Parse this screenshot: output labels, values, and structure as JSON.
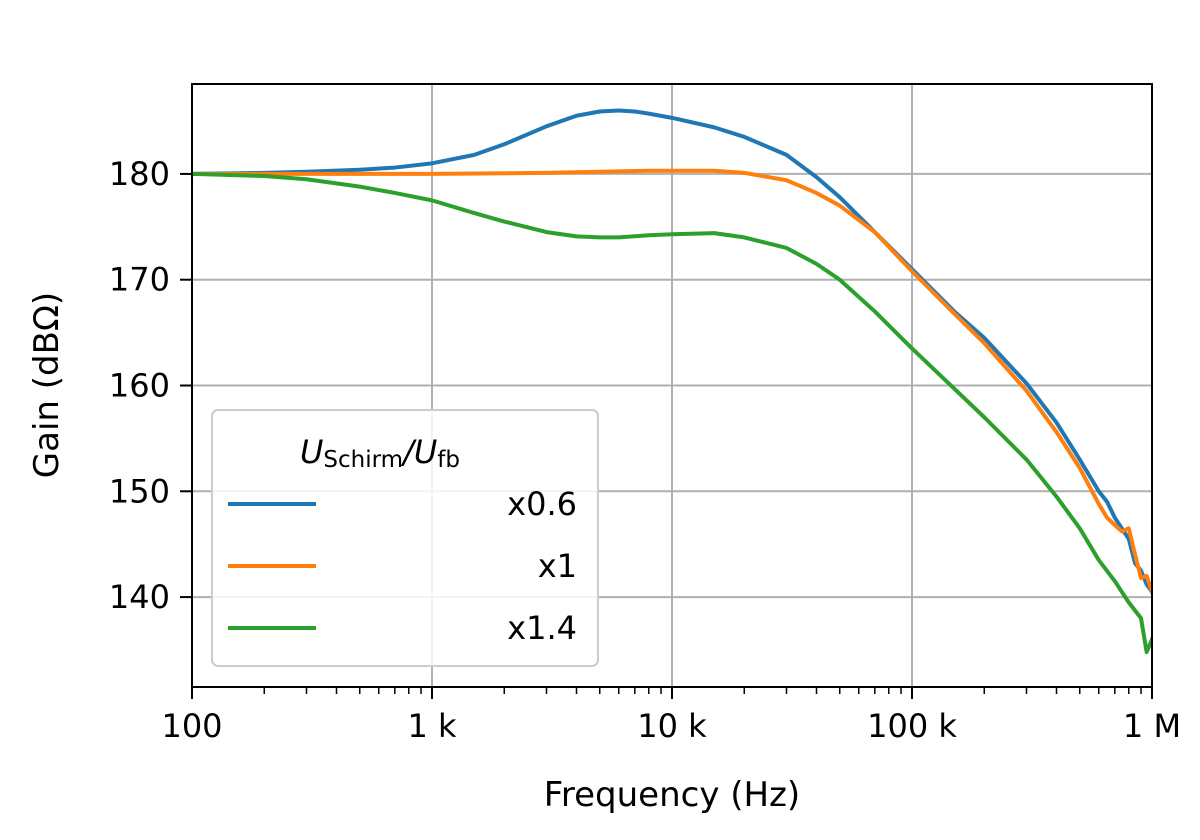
{
  "chart_data": {
    "type": "line",
    "xlabel": "Frequency (Hz)",
    "ylabel": "Gain (dBΩ)",
    "x_scale": "log",
    "xlim": [
      100,
      1000000
    ],
    "ylim": [
      131.5,
      188.5
    ],
    "grid": true,
    "x_ticks": [
      {
        "value": 100,
        "label": "100"
      },
      {
        "value": 1000,
        "label": "1 k"
      },
      {
        "value": 10000,
        "label": "10 k"
      },
      {
        "value": 100000,
        "label": "100 k"
      },
      {
        "value": 1000000,
        "label": "1 M"
      }
    ],
    "y_ticks": [
      140,
      150,
      160,
      170,
      180
    ],
    "legend": {
      "title_main": "U",
      "title_sub1": "Schirm",
      "title_sep": "/U",
      "title_sub2": "fb",
      "placement": "lower-left"
    },
    "series": [
      {
        "name": "x0.6",
        "color": "#1f77b4",
        "points": [
          [
            100,
            180
          ],
          [
            200,
            180.1
          ],
          [
            300,
            180.2
          ],
          [
            500,
            180.4
          ],
          [
            700,
            180.6
          ],
          [
            1000,
            181
          ],
          [
            1500,
            181.8
          ],
          [
            2000,
            182.8
          ],
          [
            3000,
            184.5
          ],
          [
            4000,
            185.5
          ],
          [
            5000,
            185.9
          ],
          [
            6000,
            186
          ],
          [
            7000,
            185.9
          ],
          [
            8000,
            185.7
          ],
          [
            10000,
            185.3
          ],
          [
            15000,
            184.4
          ],
          [
            20000,
            183.5
          ],
          [
            30000,
            181.8
          ],
          [
            40000,
            179.7
          ],
          [
            50000,
            177.8
          ],
          [
            70000,
            174.5
          ],
          [
            100000,
            171
          ],
          [
            150000,
            167
          ],
          [
            200000,
            164.5
          ],
          [
            300000,
            160.2
          ],
          [
            400000,
            156.5
          ],
          [
            500000,
            153
          ],
          [
            600000,
            150
          ],
          [
            650000,
            149
          ],
          [
            700000,
            147.5
          ],
          [
            800000,
            145.5
          ],
          [
            850000,
            143.2
          ],
          [
            900000,
            142.5
          ],
          [
            950000,
            141.2
          ],
          [
            1000000,
            140.5
          ]
        ]
      },
      {
        "name": "x1",
        "color": "#ff7f0e",
        "points": [
          [
            100,
            180
          ],
          [
            300,
            180
          ],
          [
            1000,
            180
          ],
          [
            3000,
            180.1
          ],
          [
            5000,
            180.2
          ],
          [
            8000,
            180.3
          ],
          [
            10000,
            180.3
          ],
          [
            15000,
            180.3
          ],
          [
            20000,
            180.1
          ],
          [
            30000,
            179.4
          ],
          [
            40000,
            178.2
          ],
          [
            50000,
            177
          ],
          [
            70000,
            174.5
          ],
          [
            100000,
            170.8
          ],
          [
            150000,
            166.8
          ],
          [
            200000,
            164
          ],
          [
            300000,
            159.5
          ],
          [
            400000,
            155.6
          ],
          [
            500000,
            152.2
          ],
          [
            600000,
            148.8
          ],
          [
            650000,
            147.5
          ],
          [
            700000,
            146.8
          ],
          [
            750000,
            146.2
          ],
          [
            800000,
            146.5
          ],
          [
            850000,
            144
          ],
          [
            900000,
            141.8
          ],
          [
            950000,
            142
          ],
          [
            1000000,
            140.5
          ]
        ]
      },
      {
        "name": "x1.4",
        "color": "#2ca02c",
        "points": [
          [
            100,
            180
          ],
          [
            200,
            179.8
          ],
          [
            300,
            179.5
          ],
          [
            500,
            178.8
          ],
          [
            700,
            178.2
          ],
          [
            1000,
            177.5
          ],
          [
            1500,
            176.3
          ],
          [
            2000,
            175.5
          ],
          [
            3000,
            174.5
          ],
          [
            4000,
            174.1
          ],
          [
            5000,
            174
          ],
          [
            6000,
            174
          ],
          [
            8000,
            174.2
          ],
          [
            10000,
            174.3
          ],
          [
            15000,
            174.4
          ],
          [
            20000,
            174
          ],
          [
            30000,
            173
          ],
          [
            40000,
            171.5
          ],
          [
            50000,
            170
          ],
          [
            70000,
            167
          ],
          [
            100000,
            163.5
          ],
          [
            150000,
            159.7
          ],
          [
            200000,
            157
          ],
          [
            300000,
            153
          ],
          [
            400000,
            149.5
          ],
          [
            500000,
            146.5
          ],
          [
            600000,
            143.5
          ],
          [
            700000,
            141.5
          ],
          [
            800000,
            139.5
          ],
          [
            900000,
            138
          ],
          [
            950000,
            134.8
          ],
          [
            1000000,
            136
          ]
        ]
      }
    ]
  }
}
